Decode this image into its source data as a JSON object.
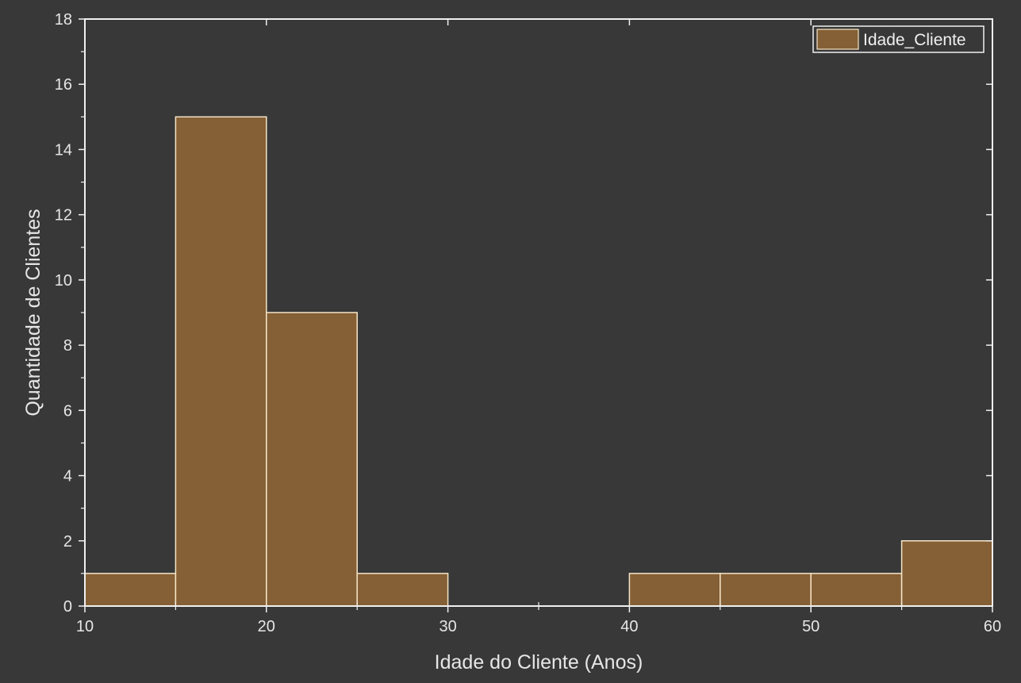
{
  "chart_data": {
    "type": "bar",
    "title": "",
    "xlabel": "Idade do Cliente (Anos)",
    "ylabel": "Quantidade de Clientes",
    "xlim": [
      10,
      60
    ],
    "ylim": [
      0,
      18
    ],
    "x_ticks": [
      10,
      20,
      30,
      40,
      50,
      60
    ],
    "y_ticks": [
      0,
      2,
      4,
      6,
      8,
      10,
      12,
      14,
      16,
      18
    ],
    "bin_width": 5,
    "series": [
      {
        "name": "Idade_Cliente",
        "bins": [
          {
            "start": 10,
            "end": 15,
            "count": 1
          },
          {
            "start": 15,
            "end": 20,
            "count": 15
          },
          {
            "start": 20,
            "end": 25,
            "count": 9
          },
          {
            "start": 25,
            "end": 30,
            "count": 1
          },
          {
            "start": 30,
            "end": 35,
            "count": 0
          },
          {
            "start": 35,
            "end": 40,
            "count": 0
          },
          {
            "start": 40,
            "end": 45,
            "count": 1
          },
          {
            "start": 45,
            "end": 50,
            "count": 1
          },
          {
            "start": 50,
            "end": 55,
            "count": 1
          },
          {
            "start": 55,
            "end": 60,
            "count": 2
          }
        ]
      }
    ],
    "legend_position": "top-right",
    "grid": false
  },
  "colors": {
    "background": "#383838",
    "plot_background": "#383838",
    "bar_fill": "#855f35",
    "bar_edge": "#f5e6c8",
    "axis": "#f0f0f0",
    "text": "#e6e6e6"
  }
}
